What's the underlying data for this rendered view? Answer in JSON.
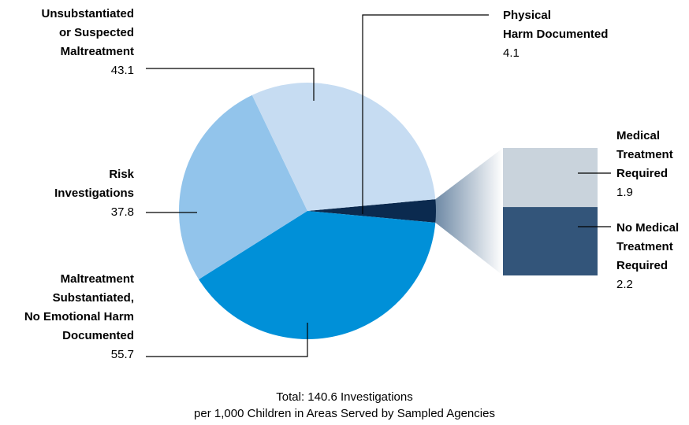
{
  "chart_data": {
    "type": "pie-of-bar",
    "categories": [
      [
        "Physical",
        "Harm Documented"
      ],
      [
        "Maltreatment",
        "Substantiated,",
        "No Emotional Harm",
        "Documented"
      ],
      [
        "Risk",
        "Investigations"
      ],
      [
        "Unsubstantiated",
        "or Suspected",
        "Maltreatment"
      ]
    ],
    "values": [
      4.1,
      55.7,
      37.8,
      43.1
    ],
    "colors": [
      "#0b2a4f",
      "#0090d8",
      "#92c4eb",
      "#c6dcf2"
    ],
    "breakout": {
      "categories": [
        [
          "Medical",
          "Treatment",
          "Required"
        ],
        [
          "No Medical",
          "Treatment",
          "Required"
        ]
      ],
      "values": [
        1.9,
        2.2
      ],
      "colors": [
        "#c9d3dc",
        "#33557a"
      ]
    },
    "note_lines": [
      "Total: 140.6 Investigations",
      "per 1,000 Children in Areas Served by Sampled Agencies"
    ]
  }
}
